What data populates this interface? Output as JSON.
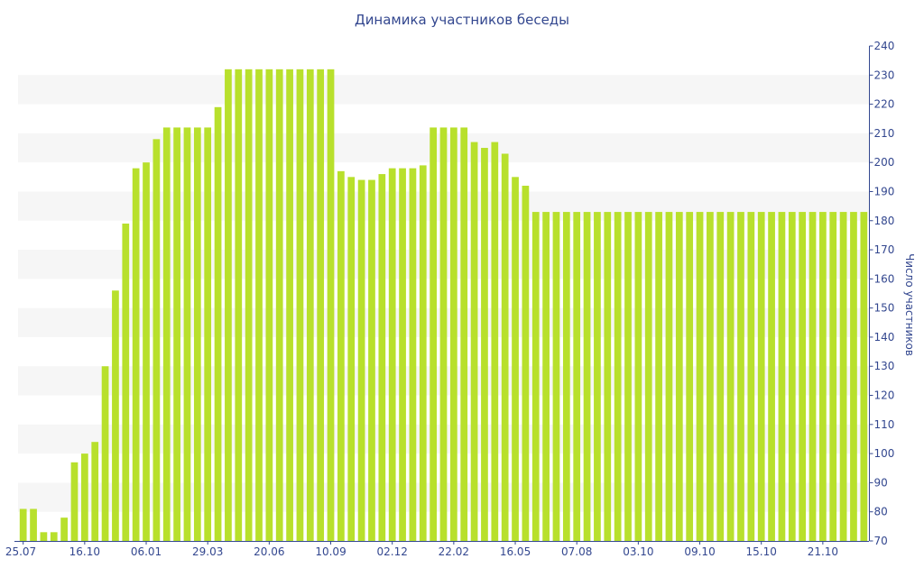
{
  "chart_data": {
    "type": "bar",
    "title": "Динамика участников беседы",
    "xlabel": "",
    "ylabel": "Число участников",
    "ylim": [
      70,
      240
    ],
    "yticks": [
      70,
      80,
      90,
      100,
      110,
      120,
      130,
      140,
      150,
      160,
      170,
      180,
      190,
      200,
      210,
      220,
      230,
      240
    ],
    "xtick_labels": [
      {
        "index": 0,
        "label": "25.07"
      },
      {
        "index": 6,
        "label": "16.10"
      },
      {
        "index": 12,
        "label": "06.01"
      },
      {
        "index": 18,
        "label": "29.03"
      },
      {
        "index": 24,
        "label": "20.06"
      },
      {
        "index": 30,
        "label": "10.09"
      },
      {
        "index": 36,
        "label": "02.12"
      },
      {
        "index": 42,
        "label": "22.02"
      },
      {
        "index": 48,
        "label": "16.05"
      },
      {
        "index": 54,
        "label": "07.08"
      },
      {
        "index": 60,
        "label": "03.10"
      },
      {
        "index": 66,
        "label": "09.10"
      },
      {
        "index": 72,
        "label": "15.10"
      },
      {
        "index": 78,
        "label": "21.10"
      }
    ],
    "values": [
      81,
      81,
      73,
      73,
      78,
      97,
      100,
      104,
      130,
      156,
      179,
      198,
      200,
      208,
      212,
      212,
      212,
      212,
      212,
      219,
      232,
      232,
      232,
      232,
      232,
      232,
      232,
      232,
      232,
      232,
      232,
      197,
      195,
      194,
      194,
      196,
      198,
      198,
      198,
      199,
      212,
      212,
      212,
      212,
      207,
      205,
      207,
      203,
      195,
      192,
      183,
      183,
      183,
      183,
      183,
      183,
      183,
      183,
      183,
      183,
      183,
      183,
      183,
      183,
      183,
      183,
      183,
      183,
      183,
      183,
      183,
      183,
      183,
      183,
      183,
      183,
      183,
      183,
      183,
      183,
      183,
      183,
      183
    ],
    "bar_color": "#b8e02c",
    "band_color": "#f6f6f6",
    "axis_color": "#33478f",
    "grid": "alternating horizontal bands",
    "legend": "none"
  }
}
